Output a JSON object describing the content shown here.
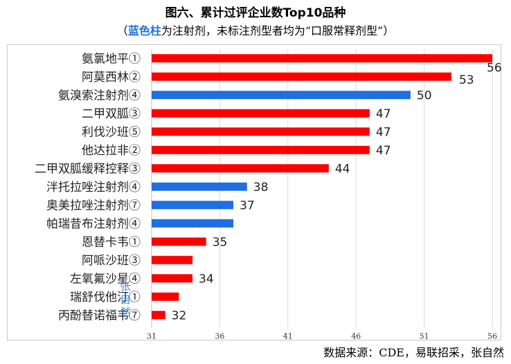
{
  "title": "图六、累计过评企业数Top10品种",
  "subtitle": {
    "prefix": "（",
    "highlight": "蓝色柱",
    "rest": "为注射剂，未标注剂型者均为“口服常释剂型”）"
  },
  "source": "数据来源：CDE，易联招采，张自然",
  "watermark": "张自然",
  "colors": {
    "red": "#ff0000",
    "blue": "#1f6fe0"
  },
  "chart_data": {
    "type": "bar",
    "orientation": "horizontal",
    "categories": [
      "氨氯地平①",
      "阿莫西林②",
      "氨溴索注射剂④",
      "二甲双胍③",
      "利伐沙班⑤",
      "他达拉非②",
      "二甲双胍缓释控释③",
      "泮托拉唑注射剂④",
      "奥美拉唑注射剂⑦",
      "帕瑞昔布注射剂④",
      "恩替卡韦①",
      "阿哌沙班③",
      "左氧氟沙星④",
      "瑞舒伐他汀①",
      "丙酚替诺福韦⑦"
    ],
    "values": [
      56,
      53,
      50,
      47,
      47,
      47,
      44,
      38,
      37,
      37,
      35,
      34,
      34,
      33,
      32
    ],
    "data_labels": [
      "56",
      "53",
      "50",
      "47",
      "47",
      "47",
      "44",
      "38",
      "37",
      "",
      "35",
      "",
      "34",
      "",
      "32"
    ],
    "bar_colors": [
      "red",
      "red",
      "blue",
      "red",
      "red",
      "red",
      "red",
      "blue",
      "blue",
      "blue",
      "red",
      "red",
      "red",
      "red",
      "red"
    ],
    "xlim": [
      31,
      56
    ],
    "xticks": [
      "31",
      "36",
      "41",
      "46",
      "51",
      "56"
    ],
    "title": "",
    "xlabel": "",
    "ylabel": ""
  }
}
